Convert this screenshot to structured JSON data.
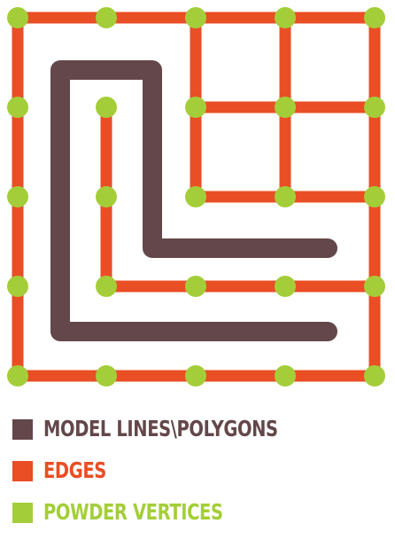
{
  "colors": {
    "model": "#64474a",
    "edges": "#e94e24",
    "vertices": "#a4ce39",
    "background": "#ffffff"
  },
  "legend": [
    {
      "key": "model",
      "label": "MODEL LINES\\POLYGONS"
    },
    {
      "key": "edges",
      "label": "EDGES"
    },
    {
      "key": "vertices",
      "label": "POWDER VERTICES"
    }
  ]
}
